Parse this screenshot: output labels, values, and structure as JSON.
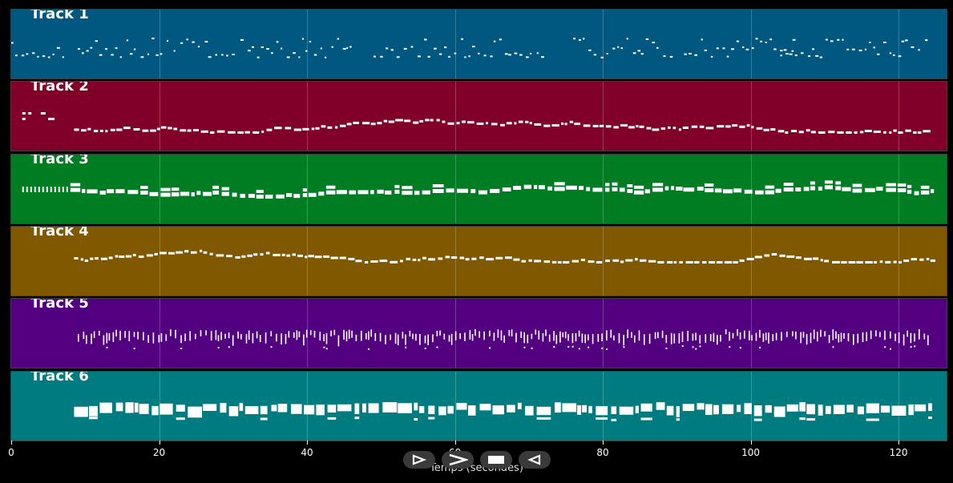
{
  "tracks": [
    {
      "label": "Track 1",
      "color": "#005880",
      "pattern": "sparse"
    },
    {
      "label": "Track 2",
      "color": "#80002a",
      "pattern": "melody"
    },
    {
      "label": "Track 3",
      "color": "#007c22",
      "pattern": "chords"
    },
    {
      "label": "Track 4",
      "color": "#805800",
      "pattern": "melody"
    },
    {
      "label": "Track 5",
      "color": "#520080",
      "pattern": "dense"
    },
    {
      "label": "Track 6",
      "color": "#007c80",
      "pattern": "block"
    }
  ],
  "axis": {
    "label": "Temps (secondes)",
    "min": 0,
    "max": 126.5,
    "ticks": [
      "0",
      "20",
      "40",
      "60",
      "80",
      "100",
      "120"
    ],
    "tick_values": [
      0,
      20,
      40,
      60,
      80,
      100,
      120
    ]
  },
  "controls": [
    {
      "name": "play-outline-icon"
    },
    {
      "name": "forward-chevron-icon"
    },
    {
      "name": "stop-icon"
    },
    {
      "name": "back-triangle-icon"
    }
  ]
}
